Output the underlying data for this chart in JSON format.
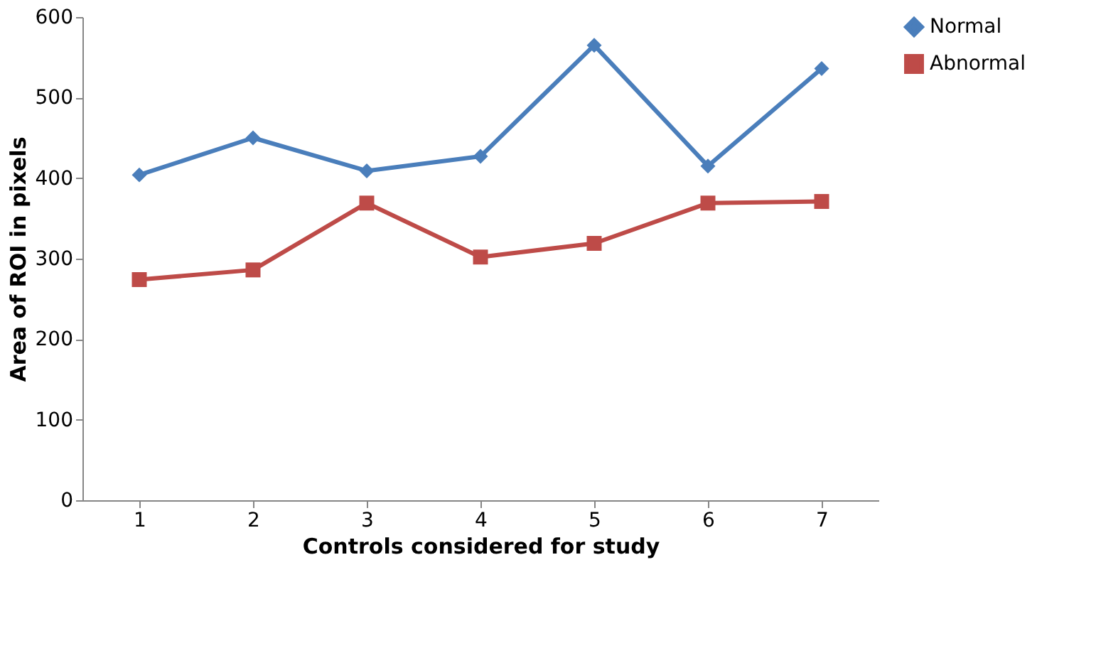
{
  "chart_data": {
    "type": "line",
    "xlabel": "Controls considered for study",
    "ylabel": "Area of ROI in pixels",
    "categories": [
      "1",
      "2",
      "3",
      "4",
      "5",
      "6",
      "7"
    ],
    "series": [
      {
        "name": "Normal",
        "color": "#4a7ebb",
        "marker": "diamond",
        "line_style": "solid",
        "values": [
          404,
          450,
          409,
          427,
          565,
          415,
          536
        ]
      },
      {
        "name": "Abnormal",
        "color": "#be4b48",
        "marker": "square",
        "line_style": "solid",
        "values": [
          274,
          286,
          369,
          302,
          319,
          369,
          371
        ]
      }
    ],
    "ylim": [
      0,
      600
    ],
    "yticks": [
      0,
      100,
      200,
      300,
      400,
      500,
      600
    ],
    "grid": false,
    "legend": "right"
  }
}
